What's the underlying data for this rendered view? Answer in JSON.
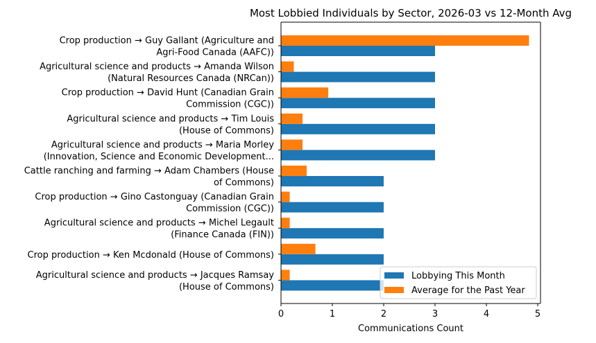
{
  "chart_data": {
    "type": "bar",
    "orientation": "horizontal",
    "title": "Most Lobbied Individuals by Sector, 2026-03 vs 12-Month Avg",
    "xlabel": "Communications Count",
    "ylabel": "",
    "xlim": [
      0,
      5.1
    ],
    "xticks": [
      "0",
      "1",
      "2",
      "3",
      "4",
      "5"
    ],
    "grid": false,
    "legend_position": "lower-right",
    "categories": [
      [
        "Crop production → Guy Gallant (Agriculture and",
        "Agri-Food Canada (AAFC))"
      ],
      [
        "Agricultural science and products → Amanda Wilson",
        "(Natural Resources Canada (NRCan))"
      ],
      [
        "Crop production → David Hunt (Canadian Grain",
        "Commission (CGC))"
      ],
      [
        "Agricultural science and products → Tim Louis",
        "(House of Commons)"
      ],
      [
        "Agricultural science and products → Maria Morley",
        "(Innovation, Science and Economic Development..."
      ],
      [
        "Cattle ranching and farming → Adam Chambers (House",
        "of Commons)"
      ],
      [
        "Crop production → Gino Castonguay (Canadian Grain",
        "Commission (CGC))"
      ],
      [
        "Agricultural science and products → Michel Legault",
        "(Finance Canada (FIN))"
      ],
      [
        "Crop production → Ken Mcdonald (House of Commons)"
      ],
      [
        "Agricultural science and products → Jacques Ramsay",
        "(House of Commons)"
      ]
    ],
    "series": [
      {
        "name": "Lobbying This Month",
        "color": "#1f77b4",
        "values": [
          3,
          3,
          3,
          3,
          3,
          2,
          2,
          2,
          2,
          2
        ]
      },
      {
        "name": "Average for the Past Year",
        "color": "#ff7f0e",
        "values": [
          4.83,
          0.25,
          0.92,
          0.42,
          0.42,
          0.5,
          0.17,
          0.17,
          0.67,
          0.17
        ]
      }
    ]
  }
}
